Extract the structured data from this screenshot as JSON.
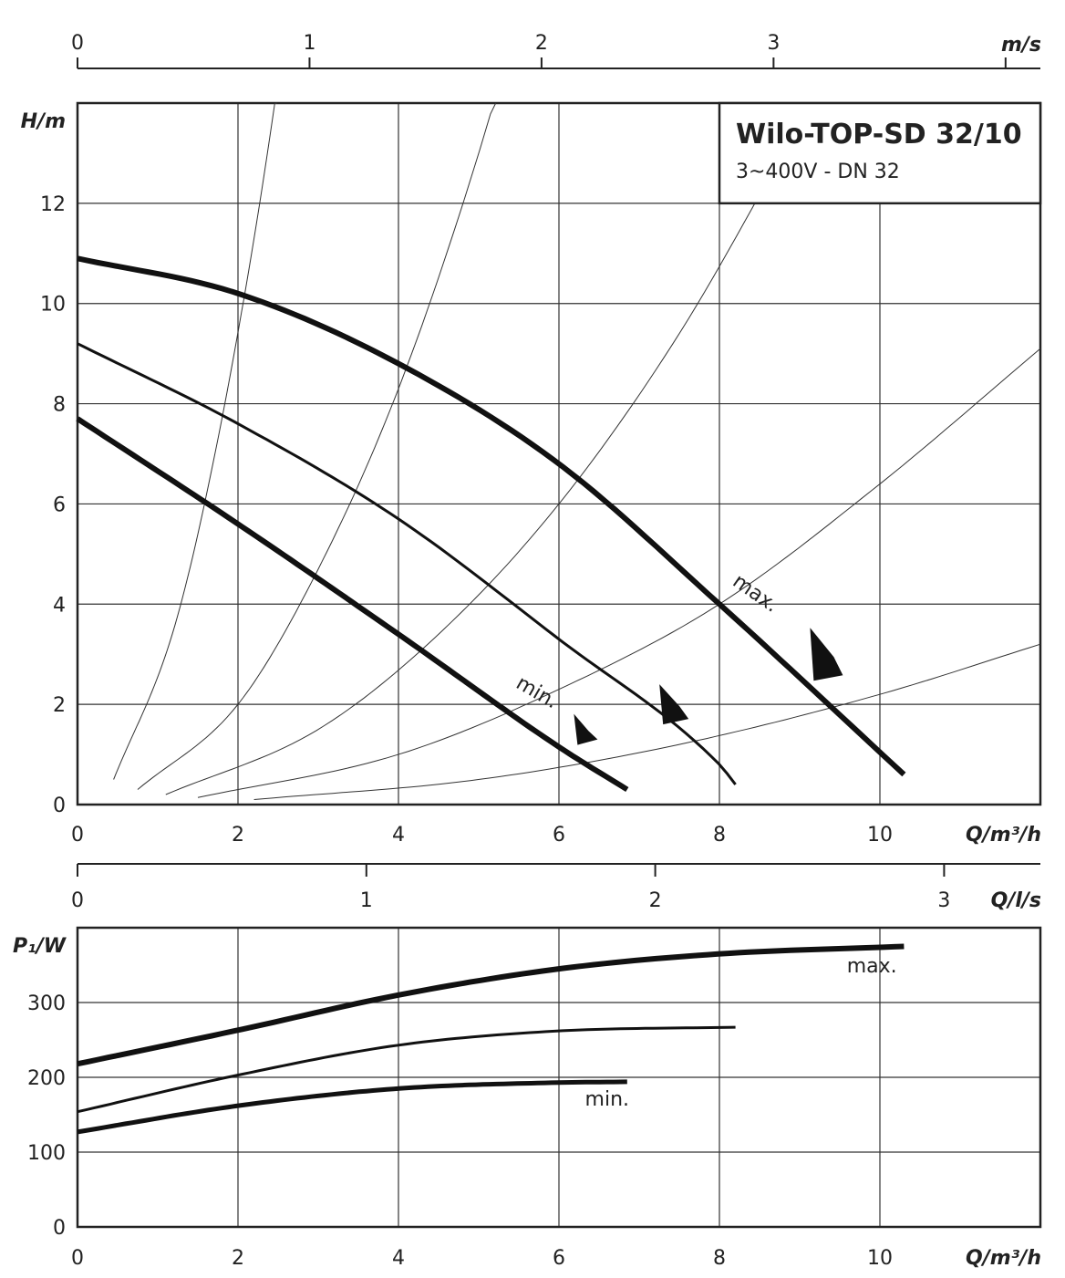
{
  "chart_data": [
    {
      "type": "line",
      "title": "Wilo-TOP-SD 32/10",
      "subtitle": "3~400V - DN 32",
      "xlabel": "Q/m³/h",
      "ylabel": "H/m",
      "xlim": [
        0,
        12
      ],
      "ylim": [
        0,
        14
      ],
      "x_ticks": [
        0,
        2,
        4,
        6,
        8,
        10
      ],
      "y_ticks": [
        0,
        2,
        4,
        6,
        8,
        10,
        12
      ],
      "grid": true,
      "top_axis": {
        "label": "m/s",
        "range": [
          0,
          4.15
        ],
        "ticks": [
          0,
          1,
          2,
          3
        ]
      },
      "series": [
        {
          "name": "max.",
          "x": [
            0,
            2,
            4,
            6,
            8,
            10.3
          ],
          "y": [
            10.9,
            10.2,
            8.8,
            6.8,
            4.0,
            0.6
          ]
        },
        {
          "x": [
            0,
            2,
            4,
            6,
            8,
            8.2
          ],
          "y": [
            9.2,
            7.6,
            5.7,
            3.3,
            0.8,
            0.4
          ]
        },
        {
          "name": "min.",
          "x": [
            0,
            2,
            4,
            6,
            6.85
          ],
          "y": [
            7.7,
            5.6,
            3.4,
            1.15,
            0.3
          ]
        }
      ],
      "system_curves": [
        {
          "x": [
            0.45,
            1.2,
            1.7,
            2.2,
            2.6,
            3.0
          ],
          "y": [
            0.5,
            3.5,
            6.9,
            11.3,
            15.6,
            20.6
          ]
        },
        {
          "x": [
            0.75,
            2.0,
            3.0,
            4.0,
            5.0,
            6.0
          ],
          "y": [
            0.3,
            2.0,
            4.7,
            8.3,
            13.0,
            18.7
          ]
        },
        {
          "x": [
            1.1,
            3.0,
            4.5,
            6.0,
            7.5,
            9.0
          ],
          "y": [
            0.2,
            1.5,
            3.4,
            6.0,
            9.4,
            13.6
          ]
        },
        {
          "x": [
            1.5,
            4.0,
            6.0,
            8.0,
            10.0,
            12.0
          ],
          "y": [
            0.14,
            1.0,
            2.3,
            4.0,
            6.4,
            9.1
          ]
        },
        {
          "x": [
            2.2,
            5.0,
            7.5,
            10.0,
            12.0
          ],
          "y": [
            0.1,
            0.5,
            1.2,
            2.2,
            3.2
          ]
        }
      ],
      "operating_markers": [
        {
          "x": 6.3,
          "y": 1.5
        },
        {
          "x": 7.4,
          "y": 2.0
        },
        {
          "x": 9.3,
          "y": 3.0
        }
      ],
      "labels": {
        "max": "max.",
        "min": "min."
      },
      "legend": "top-right"
    },
    {
      "type": "line",
      "xlabel": "Q/m³/h",
      "ylabel": "P₁/W",
      "xlim": [
        0,
        12
      ],
      "ylim": [
        0,
        400
      ],
      "x_ticks": [
        0,
        2,
        4,
        6,
        8,
        10
      ],
      "y_ticks": [
        0,
        100,
        200,
        300
      ],
      "grid": true,
      "top_axis": {
        "label": "Q/l/s",
        "range": [
          0,
          3.3333
        ],
        "ticks": [
          0,
          1,
          2,
          3
        ]
      },
      "series": [
        {
          "name": "max.",
          "x": [
            0,
            2,
            4,
            6,
            8,
            10.3
          ],
          "y": [
            218,
            263,
            310,
            345,
            365,
            375
          ]
        },
        {
          "x": [
            0,
            2,
            4,
            6,
            8.2
          ],
          "y": [
            154,
            203,
            243,
            262,
            267
          ]
        },
        {
          "name": "min.",
          "x": [
            0,
            2,
            4,
            6,
            6.85
          ],
          "y": [
            127,
            162,
            185,
            193,
            194
          ]
        }
      ],
      "labels": {
        "max": "max.",
        "min": "min."
      }
    }
  ]
}
